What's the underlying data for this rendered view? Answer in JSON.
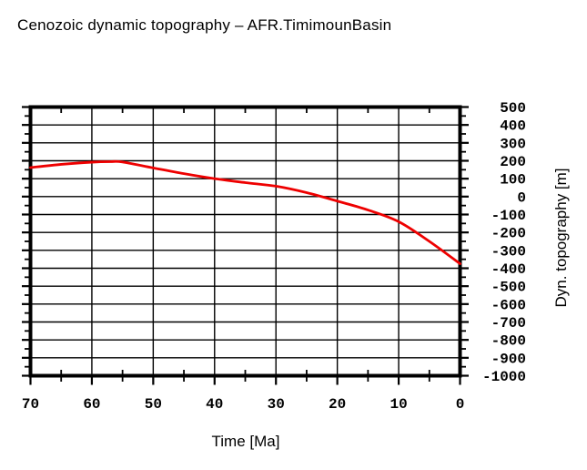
{
  "page": {
    "background": "#ffffff",
    "axis_color": "#000000"
  },
  "chart_data": {
    "type": "line",
    "title": "Cenozoic dynamic topography – AFR.TimimounBasin",
    "xlabel": "Time [Ma]",
    "ylabel": "Dyn. topography [m]",
    "grid": true,
    "legend": "none",
    "x_axis": {
      "min": 0,
      "max": 70,
      "reversed": true,
      "major_ticks": [
        70,
        60,
        50,
        40,
        30,
        20,
        10,
        0
      ],
      "minor_tick_interval": 5,
      "grid_interval": 10
    },
    "y_axis": {
      "min": -1000,
      "max": 500,
      "labels_side": "right",
      "major_ticks": [
        500,
        400,
        300,
        200,
        100,
        0,
        -100,
        -200,
        -300,
        -400,
        -500,
        -600,
        -700,
        -800,
        -900,
        -1000
      ],
      "minor_tick_interval": 50,
      "grid_interval": 100
    },
    "series": [
      {
        "name": "dynamic-topography-curve",
        "color": "#ee0000",
        "x": [
          70,
          65,
          60,
          57,
          55,
          50,
          45,
          40,
          35,
          30,
          25,
          20,
          15,
          10,
          5,
          0
        ],
        "y": [
          162,
          180,
          192,
          195,
          193,
          160,
          128,
          100,
          78,
          58,
          22,
          -25,
          -75,
          -140,
          -250,
          -375
        ]
      }
    ]
  }
}
